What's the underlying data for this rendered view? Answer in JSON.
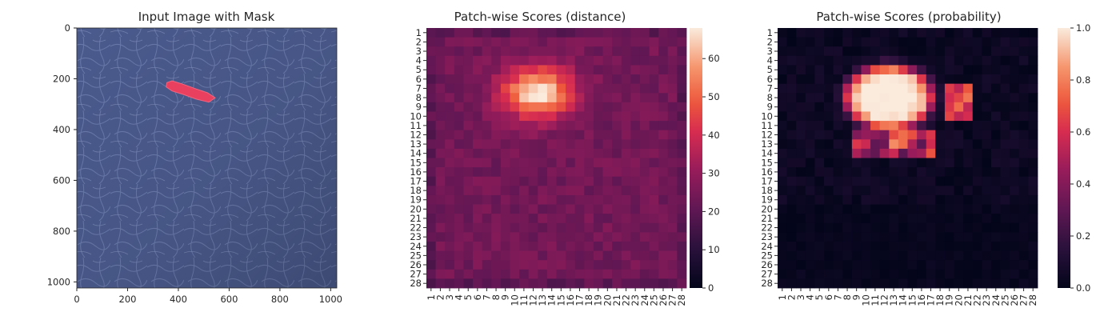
{
  "chart_data": [
    {
      "type": "image",
      "title": "Input Image with Mask",
      "xlim": [
        0,
        1024
      ],
      "ylim": [
        1024,
        0
      ],
      "xticks": [
        "0",
        "200",
        "400",
        "600",
        "800",
        "1000"
      ],
      "yticks": [
        "0",
        "200",
        "400",
        "600",
        "800",
        "1000"
      ],
      "background": "leather texture (blue-grey)",
      "mask": {
        "color": "#e8405e",
        "polygon": [
          [
            355,
            215
          ],
          [
            375,
            208
          ],
          [
            420,
            222
          ],
          [
            470,
            240
          ],
          [
            515,
            255
          ],
          [
            545,
            275
          ],
          [
            520,
            292
          ],
          [
            470,
            280
          ],
          [
            420,
            262
          ],
          [
            375,
            248
          ],
          [
            352,
            232
          ]
        ]
      }
    },
    {
      "type": "heatmap",
      "title": "Patch-wise Scores (distance)",
      "rows": 28,
      "cols": 28,
      "row_labels": [
        "1",
        "2",
        "3",
        "4",
        "5",
        "6",
        "7",
        "8",
        "9",
        "10",
        "11",
        "12",
        "13",
        "14",
        "15",
        "16",
        "17",
        "18",
        "19",
        "20",
        "21",
        "22",
        "23",
        "24",
        "25",
        "26",
        "27",
        "28"
      ],
      "col_labels": [
        "1",
        "2",
        "3",
        "4",
        "5",
        "6",
        "7",
        "8",
        "9",
        "10",
        "11",
        "12",
        "13",
        "14",
        "15",
        "16",
        "17",
        "18",
        "19",
        "20",
        "21",
        "22",
        "23",
        "24",
        "25",
        "26",
        "27",
        "28"
      ],
      "colorbar": {
        "min": 0,
        "max": 68,
        "ticks": [
          0,
          10,
          20,
          30,
          40,
          50,
          60
        ],
        "colormap": "rocket"
      },
      "description": "Background scores ~18-30; hot spot ~ rows 4-12, cols 8-18, peaking ~68 near row 7-8, col 12-13.",
      "background_level": 24,
      "peak": {
        "row": 7.5,
        "col": 12.5,
        "value": 68
      }
    },
    {
      "type": "heatmap",
      "title": "Patch-wise Scores (probability)",
      "rows": 28,
      "cols": 28,
      "row_labels": [
        "1",
        "2",
        "3",
        "4",
        "5",
        "6",
        "7",
        "8",
        "9",
        "10",
        "11",
        "12",
        "13",
        "14",
        "15",
        "16",
        "17",
        "18",
        "19",
        "20",
        "21",
        "22",
        "23",
        "24",
        "25",
        "26",
        "27",
        "28"
      ],
      "col_labels": [
        "1",
        "2",
        "3",
        "4",
        "5",
        "6",
        "7",
        "8",
        "9",
        "10",
        "11",
        "12",
        "13",
        "14",
        "15",
        "16",
        "17",
        "18",
        "19",
        "20",
        "21",
        "22",
        "23",
        "24",
        "25",
        "26",
        "27",
        "28"
      ],
      "colorbar": {
        "min": 0.0,
        "max": 1.0,
        "ticks": [
          "0.0",
          "0.2",
          "0.4",
          "0.6",
          "0.8",
          "1.0"
        ],
        "colormap": "rocket"
      },
      "description": "Mostly ~0; saturated region ~1.0 rows 3-12 cols 7-18, edge values 0.3-0.7 around rows 12-14.",
      "background_level": 0.02,
      "peak": {
        "row": 8,
        "col": 12.5,
        "value": 1.0
      }
    }
  ]
}
